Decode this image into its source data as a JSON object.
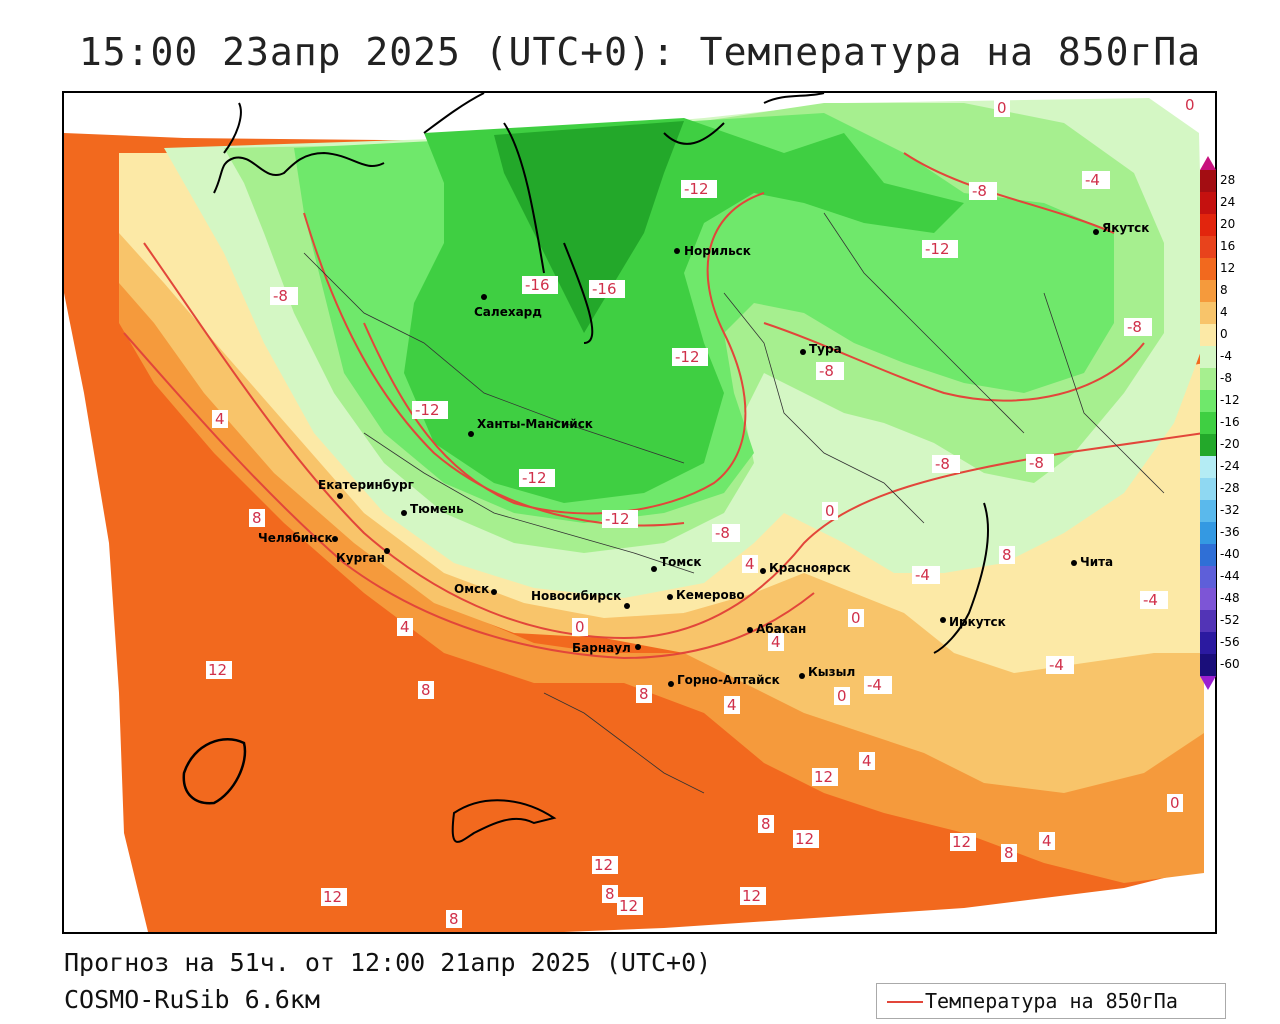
{
  "title": "15:00 23апр 2025 (UTC+0): Температура на 850гПа",
  "footer": {
    "line1": "Прогноз на 51ч. от 12:00 21апр 2025 (UTC+0)",
    "line2": "COSMO-RuSib 6.6км"
  },
  "legend": {
    "label": "Температура на 850гПа",
    "line_color": "#e2463a"
  },
  "colorbar": {
    "ticks": [
      "28",
      "24",
      "20",
      "16",
      "12",
      "8",
      "4",
      "0",
      "-4",
      "-8",
      "-12",
      "-16",
      "-20",
      "-24",
      "-28",
      "-32",
      "-36",
      "-40",
      "-44",
      "-48",
      "-52",
      "-56",
      "-60"
    ]
  },
  "palette": {
    "warm_deep": "#e8431c",
    "warm": "#f2691e",
    "warm_orange": "#f59a3c",
    "light_orange": "#f8c46a",
    "pale_yellow": "#fce9a6",
    "very_pale_green": "#d4f7c4",
    "light_green": "#a6ef8f",
    "green": "#6fe86b",
    "mid_green": "#3fcf42",
    "dark_green": "#23a82a",
    "contour": "#e2463a"
  },
  "cities": [
    {
      "name": "Салехард"
    },
    {
      "name": "Норильск"
    },
    {
      "name": "Якутск"
    },
    {
      "name": "Тура"
    },
    {
      "name": "Ханты-Мансийск"
    },
    {
      "name": "Екатеринбург"
    },
    {
      "name": "Тюмень"
    },
    {
      "name": "Челябинск"
    },
    {
      "name": "Курган"
    },
    {
      "name": "Омск"
    },
    {
      "name": "Новосибирск"
    },
    {
      "name": "Томск"
    },
    {
      "name": "Кемерово"
    },
    {
      "name": "Красноярск"
    },
    {
      "name": "Барнаул"
    },
    {
      "name": "Абакан"
    },
    {
      "name": "Горно-Алтайск"
    },
    {
      "name": "Кызыл"
    },
    {
      "name": "Иркутск"
    },
    {
      "name": "Чита"
    }
  ],
  "contour_labels": [
    "0",
    "-4",
    "-8",
    "-12",
    "-16",
    "4",
    "8",
    "12"
  ]
}
